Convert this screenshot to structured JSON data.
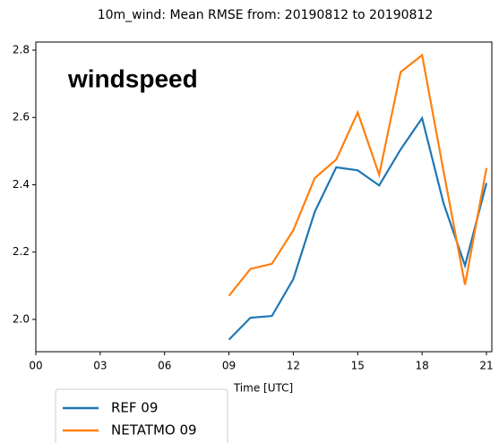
{
  "chart_data": {
    "type": "line",
    "title": "10m_wind: Mean RMSE from: 20190812 to 20190812",
    "annotation": "windspeed",
    "x_label": "Time [UTC]",
    "x": [
      9,
      10,
      11,
      12,
      13,
      14,
      15,
      16,
      17,
      18,
      19,
      20,
      21
    ],
    "series": [
      {
        "name": "REF 09",
        "color": "#1f77b4",
        "values": [
          1.94,
          2.005,
          2.01,
          2.12,
          2.32,
          2.452,
          2.443,
          2.398,
          2.505,
          2.598,
          2.345,
          2.16,
          2.405
        ]
      },
      {
        "name": "NETATMO 09",
        "color": "#ff7f0e",
        "values": [
          2.07,
          2.15,
          2.165,
          2.265,
          2.42,
          2.475,
          2.615,
          2.43,
          2.735,
          2.785,
          2.44,
          2.103,
          2.45
        ]
      }
    ],
    "xlim": [
      0,
      21.25
    ],
    "xticks": [
      {
        "value": 0,
        "label": "00"
      },
      {
        "value": 3,
        "label": "03"
      },
      {
        "value": 6,
        "label": "06"
      },
      {
        "value": 9,
        "label": "09"
      },
      {
        "value": 12,
        "label": "12"
      },
      {
        "value": 15,
        "label": "15"
      },
      {
        "value": 18,
        "label": "18"
      },
      {
        "value": 21,
        "label": "21"
      }
    ],
    "ylim": [
      1.904,
      2.824
    ],
    "yticks": [
      {
        "value": 2,
        "label": "2.0"
      },
      2.2,
      2.4,
      2.6,
      2.8
    ],
    "grid": false
  }
}
